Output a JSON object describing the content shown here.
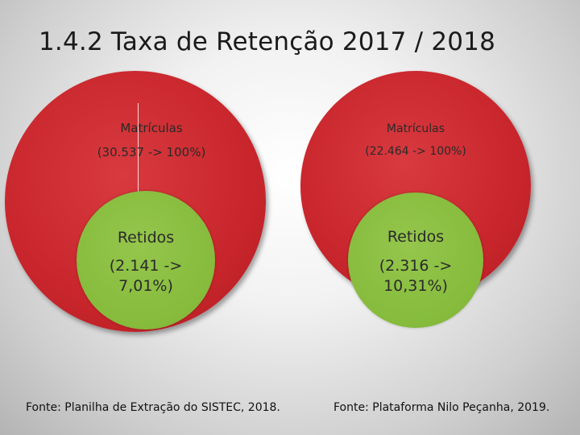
{
  "title": "1.4.2 Taxa de Retenção 2017 / 2018",
  "left": {
    "outer_label": "Matrículas",
    "outer_value": "(30.537 -> 100%)",
    "inner_label": "Retidos",
    "inner_value_line1": "(2.141 ->",
    "inner_value_line2": "7,01%)",
    "source": "Fonte: Planilha de Extração do SISTEC, 2018."
  },
  "right": {
    "outer_label": "Matrículas",
    "outer_value": "(22.464 -> 100%)",
    "inner_label": "Retidos",
    "inner_value_line1": "(2.316 ->",
    "inner_value_line2": "10,31%)",
    "source": "Fonte: Plataforma Nilo Peçanha,  2019."
  },
  "colors": {
    "outer_circle": "#c8262c",
    "inner_circle": "#86bb3c"
  }
}
